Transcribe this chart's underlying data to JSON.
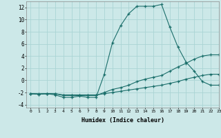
{
  "xlabel": "Humidex (Indice chaleur)",
  "background_color": "#cce8e8",
  "line_color": "#1a6e6a",
  "grid_color": "#aad4d4",
  "x": [
    0,
    1,
    2,
    3,
    4,
    5,
    6,
    7,
    8,
    9,
    10,
    11,
    12,
    13,
    14,
    15,
    16,
    17,
    18,
    19,
    20,
    21,
    22,
    23
  ],
  "line1": [
    -2.2,
    -2.3,
    -2.2,
    -2.4,
    -2.8,
    -2.8,
    -2.6,
    -2.8,
    -2.8,
    1.0,
    6.2,
    9.0,
    11.0,
    12.2,
    12.2,
    12.2,
    12.5,
    8.8,
    5.5,
    3.0,
    1.5,
    -0.2,
    -0.8,
    -0.8
  ],
  "line2": [
    -2.2,
    -2.3,
    -2.2,
    -2.2,
    -2.5,
    -2.5,
    -2.5,
    -2.5,
    -2.5,
    -2.0,
    -1.5,
    -1.2,
    -0.8,
    -0.2,
    0.2,
    0.5,
    0.8,
    1.5,
    2.2,
    2.8,
    3.5,
    4.0,
    4.2,
    4.2
  ],
  "line3": [
    -2.2,
    -2.2,
    -2.2,
    -2.2,
    -2.4,
    -2.4,
    -2.4,
    -2.4,
    -2.4,
    -2.2,
    -2.0,
    -1.8,
    -1.6,
    -1.4,
    -1.2,
    -1.0,
    -0.8,
    -0.5,
    -0.2,
    0.2,
    0.5,
    0.8,
    1.0,
    1.0
  ],
  "ylim": [
    -4.5,
    13
  ],
  "xlim": [
    -0.5,
    23
  ],
  "yticks": [
    -4,
    -2,
    0,
    2,
    4,
    6,
    8,
    10,
    12
  ],
  "xticks": [
    0,
    1,
    2,
    3,
    4,
    5,
    6,
    7,
    8,
    9,
    10,
    11,
    12,
    13,
    14,
    15,
    16,
    17,
    18,
    19,
    20,
    21,
    22,
    23
  ]
}
